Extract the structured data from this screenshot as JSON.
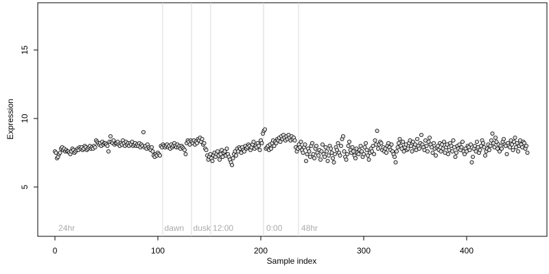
{
  "chart_data": {
    "type": "scatter",
    "xlabel": "Sample index",
    "ylabel": "Expression",
    "xlim": [
      -16.7,
      478
    ],
    "ylim": [
      1.4,
      18.45
    ],
    "xticks": [
      0,
      100,
      200,
      300,
      400
    ],
    "yticks": [
      5,
      10,
      15
    ],
    "color": "#dcdcdc",
    "edge_color": "#000000",
    "period_lines": [
      104.7,
      132.7,
      151.3,
      202.7,
      236.7
    ],
    "annotations": [
      {
        "text": "24hr",
        "x": 2
      },
      {
        "text": "dawn",
        "x": 105
      },
      {
        "text": "dusk",
        "x": 133
      },
      {
        "text": "12:00",
        "x": 152
      },
      {
        "text": "0:00",
        "x": 204
      },
      {
        "text": "48hr",
        "x": 238
      }
    ],
    "values": [
      7.6,
      7.5,
      7.1,
      7.2,
      7.4,
      7.5,
      7.8,
      7.9,
      7.7,
      7.8,
      7.6,
      7.7,
      7.6,
      7.6,
      7.5,
      7.4,
      7.6,
      7.8,
      7.7,
      7.5,
      7.6,
      7.7,
      7.8,
      7.7,
      7.9,
      7.8,
      7.9,
      7.7,
      7.8,
      8.0,
      7.9,
      7.7,
      7.8,
      7.9,
      8.0,
      7.8,
      7.9,
      7.8,
      8.0,
      7.9,
      8.4,
      8.3,
      8.2,
      8.1,
      8.2,
      8.0,
      8.3,
      8.1,
      8.2,
      8.2,
      8.1,
      8.0,
      7.6,
      8.3,
      8.7,
      8.3,
      8.2,
      8.4,
      8.1,
      8.2,
      8.2,
      8.3,
      8.1,
      8.0,
      8.2,
      8.1,
      8.4,
      8.2,
      8.0,
      8.3,
      8.1,
      8.2,
      8.0,
      8.2,
      8.1,
      8.3,
      8.0,
      8.1,
      8.2,
      8.0,
      8.1,
      8.0,
      8.2,
      7.9,
      8.1,
      8.0,
      9.0,
      7.9,
      8.0,
      7.8,
      8.1,
      7.9,
      7.8,
      7.7,
      7.9,
      7.6,
      7.3,
      7.2,
      7.4,
      7.3,
      7.5,
      7.4,
      7.3,
      8.0,
      7.9,
      8.1,
      8.0,
      7.9,
      8.0,
      8.1,
      7.9,
      8.0,
      7.8,
      8.1,
      7.9,
      8.0,
      8.2,
      8.0,
      7.9,
      8.1,
      7.9,
      8.0,
      7.8,
      8.0,
      7.9,
      7.8,
      7.7,
      7.4,
      8.2,
      8.4,
      8.3,
      8.1,
      8.4,
      8.3,
      8.2,
      8.4,
      8.1,
      8.3,
      8.2,
      8.5,
      8.4,
      8.6,
      8.3,
      8.5,
      8.1,
      8.2,
      7.8,
      7.7,
      7.3,
      7.0,
      7.2,
      7.4,
      7.1,
      6.9,
      7.3,
      7.5,
      7.2,
      7.4,
      7.6,
      7.3,
      7.0,
      7.4,
      7.7,
      7.2,
      7.5,
      7.6,
      7.3,
      7.8,
      7.4,
      7.2,
      7.0,
      6.8,
      6.6,
      7.1,
      7.4,
      7.6,
      7.3,
      7.8,
      7.6,
      7.9,
      7.8,
      7.5,
      7.9,
      7.7,
      7.6,
      8.0,
      7.8,
      7.9,
      8.1,
      8.0,
      7.7,
      7.9,
      8.1,
      8.3,
      7.8,
      8.0,
      7.9,
      8.2,
      8.0,
      7.7,
      8.4,
      8.2,
      8.9,
      9.1,
      9.2,
      7.8,
      7.9,
      8.0,
      7.7,
      8.1,
      7.8,
      8.2,
      8.4,
      8.0,
      8.3,
      8.2,
      8.5,
      8.4,
      8.6,
      8.3,
      8.7,
      8.5,
      8.8,
      8.6,
      8.4,
      8.7,
      8.5,
      8.8,
      8.6,
      8.4,
      8.7,
      8.5,
      8.6,
      8.4,
      7.9,
      7.6,
      7.8,
      8.1,
      7.9,
      8.3,
      7.7,
      7.5,
      7.9,
      8.1,
      6.9,
      7.4,
      7.8,
      7.6,
      7.2,
      8.0,
      8.2,
      7.4,
      7.1,
      7.8,
      8.0,
      7.5,
      7.3,
      7.7,
      7.0,
      7.6,
      8.1,
      7.4,
      7.2,
      7.9,
      7.6,
      6.9,
      7.3,
      8.0,
      7.8,
      7.5,
      7.1,
      6.8,
      7.4,
      7.9,
      7.7,
      8.2,
      7.5,
      7.3,
      8.0,
      8.5,
      8.7,
      7.6,
      7.2,
      7.0,
      7.4,
      8.0,
      8.3,
      7.7,
      7.5,
      7.9,
      7.6,
      7.3,
      7.1,
      7.8,
      7.5,
      7.4,
      7.7,
      8.0,
      7.6,
      7.2,
      7.4,
      7.9,
      8.2,
      7.7,
      7.3,
      7.0,
      7.5,
      7.8,
      7.6,
      8.0,
      7.4,
      8.4,
      8.1,
      9.1,
      7.8,
      8.1,
      8.3,
      8.2,
      7.7,
      7.9,
      7.6,
      7.8,
      7.5,
      8.0,
      8.2,
      7.9,
      7.7,
      8.1,
      7.6,
      7.4,
      7.2,
      6.8,
      7.6,
      7.9,
      8.2,
      8.5,
      8.0,
      7.8,
      8.3,
      7.6,
      7.9,
      8.1,
      7.7,
      7.8,
      8.2,
      8.4,
      8.0,
      7.6,
      8.3,
      7.9,
      8.1,
      7.7,
      8.5,
      8.0,
      7.8,
      8.2,
      8.8,
      8.1,
      7.9,
      7.7,
      8.4,
      8.0,
      7.6,
      8.3,
      8.6,
      8.1,
      7.9,
      7.5,
      8.2,
      7.8,
      7.3,
      7.9,
      8.0,
      7.7,
      8.2,
      7.6,
      8.1,
      7.8,
      8.3,
      7.5,
      7.9,
      8.1,
      7.4,
      7.7,
      8.2,
      8.0,
      7.6,
      8.4,
      7.9,
      7.2,
      7.5,
      8.0,
      7.8,
      8.1,
      7.7,
      7.9,
      8.3,
      7.6,
      7.4,
      7.8,
      7.6,
      8.0,
      7.9,
      7.7,
      8.1,
      6.8,
      7.2,
      7.8,
      8.0,
      7.6,
      8.3,
      7.9,
      7.5,
      7.7,
      8.0,
      8.4,
      8.2,
      7.9,
      7.3,
      7.6,
      7.8,
      8.1,
      7.7,
      8.0,
      8.4,
      8.9,
      8.2,
      7.9,
      8.6,
      8.3,
      7.8,
      8.1,
      7.6,
      8.0,
      7.8,
      8.3,
      8.5,
      8.1,
      8.0,
      7.4,
      8.2,
      8.0,
      7.9,
      8.4,
      8.1,
      7.7,
      8.3,
      8.6,
      7.9,
      8.2,
      7.6,
      8.0,
      8.4,
      8.1,
      7.9,
      8.3,
      8.2,
      7.8,
      8.0,
      7.5
    ]
  }
}
